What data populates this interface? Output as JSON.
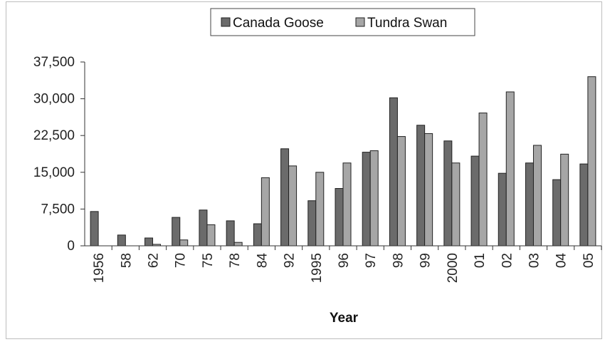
{
  "chart_data": {
    "type": "bar",
    "title": "",
    "xlabel": "Year",
    "ylabel": "",
    "ylim": [
      0,
      37500
    ],
    "yticks": [
      "0",
      "7,500",
      "15,000",
      "22,500",
      "30,000",
      "37,500"
    ],
    "ytick_values": [
      0,
      7500,
      15000,
      22500,
      30000,
      37500
    ],
    "categories": [
      "1956",
      "58",
      "62",
      "70",
      "75",
      "78",
      "84",
      "92",
      "1995",
      "96",
      "97",
      "98",
      "99",
      "2000",
      "01",
      "02",
      "03",
      "04",
      "05"
    ],
    "series": [
      {
        "name": "Canada Goose",
        "color": "#6b6b6b",
        "values": [
          7000,
          2200,
          1600,
          5800,
          7300,
          5100,
          4500,
          19800,
          9200,
          11700,
          19100,
          30200,
          24600,
          21400,
          18300,
          14800,
          16900,
          13500,
          16700
        ]
      },
      {
        "name": "Tundra Swan",
        "color": "#a6a6a6",
        "values": [
          0,
          0,
          300,
          1200,
          4300,
          700,
          13900,
          16300,
          15000,
          16900,
          19400,
          22300,
          22900,
          16900,
          27100,
          31400,
          20500,
          18700,
          34500
        ]
      }
    ],
    "grid": false,
    "legend_position": "top-center"
  }
}
